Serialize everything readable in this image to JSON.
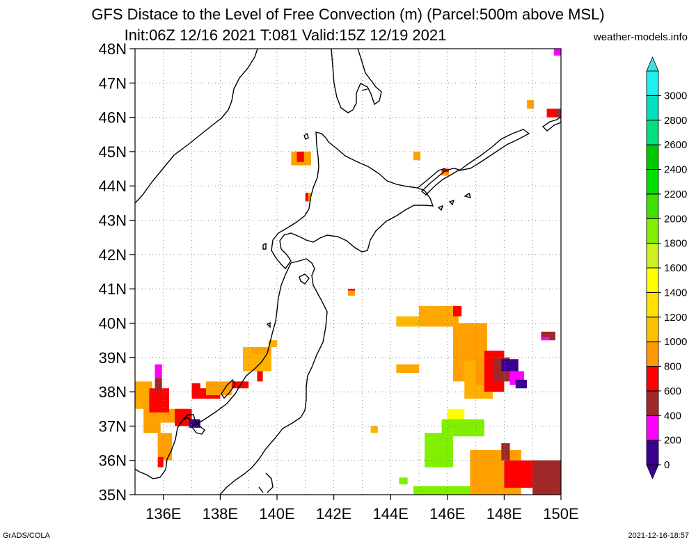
{
  "title_line1": "GFS Distace to the Level of Free Convection (m) (Parcel:500m above MSL)",
  "title_line2": "Init:06Z 12/16 2021 T:081 Valid:15Z 12/19 2021",
  "credit": "weather-models.info",
  "footer_left": "GrADS/COLA",
  "footer_right": "2021-12-16-18:57",
  "map": {
    "lon_range": [
      135,
      150
    ],
    "lat_range": [
      35,
      48
    ],
    "lon_ticks": [
      {
        "v": 136,
        "label": "136E"
      },
      {
        "v": 138,
        "label": "138E"
      },
      {
        "v": 140,
        "label": "140E"
      },
      {
        "v": 142,
        "label": "142E"
      },
      {
        "v": 144,
        "label": "144E"
      },
      {
        "v": 146,
        "label": "146E"
      },
      {
        "v": 148,
        "label": "148E"
      },
      {
        "v": 150,
        "label": "150E"
      }
    ],
    "lat_ticks": [
      {
        "v": 35,
        "label": "35N"
      },
      {
        "v": 36,
        "label": "36N"
      },
      {
        "v": 37,
        "label": "37N"
      },
      {
        "v": 38,
        "label": "38N"
      },
      {
        "v": 39,
        "label": "39N"
      },
      {
        "v": 40,
        "label": "40N"
      },
      {
        "v": 41,
        "label": "41N"
      },
      {
        "v": 42,
        "label": "42N"
      },
      {
        "v": 43,
        "label": "43N"
      },
      {
        "v": 44,
        "label": "44N"
      },
      {
        "v": 45,
        "label": "45N"
      },
      {
        "v": 46,
        "label": "46N"
      },
      {
        "v": 47,
        "label": "47N"
      },
      {
        "v": 48,
        "label": "48N"
      }
    ],
    "grid": "dotted"
  },
  "colorbar": {
    "levels": [
      "0",
      "200",
      "400",
      "600",
      "800",
      "1000",
      "1200",
      "1400",
      "1600",
      "1800",
      "2000",
      "2200",
      "2400",
      "2600",
      "2800",
      "3000"
    ],
    "colors": [
      "#3c0090",
      "#ff00ff",
      "#a02828",
      "#ff0000",
      "#ff9900",
      "#ffc000",
      "#ffe000",
      "#ffff00",
      "#cdf01e",
      "#80f000",
      "#40e000",
      "#00e000",
      "#00c800",
      "#00e080",
      "#00e0c0",
      "#20f0f0"
    ],
    "under_color": "#3c0090",
    "over_color": "#40e0e0"
  },
  "cape_field": [
    {
      "lon0": 146.2,
      "lon1": 147.4,
      "lat0": 38.3,
      "lat1": 40.0,
      "color": "#ffa000"
    },
    {
      "lon0": 146.6,
      "lon1": 147.6,
      "lat0": 37.8,
      "lat1": 38.9,
      "color": "#ffb000"
    },
    {
      "lon0": 147.0,
      "lon1": 147.6,
      "lat0": 38.2,
      "lat1": 39.0,
      "color": "#ff9900"
    },
    {
      "lon0": 145.0,
      "lon1": 146.4,
      "lat0": 39.9,
      "lat1": 40.5,
      "color": "#ffa800"
    },
    {
      "lon0": 144.2,
      "lon1": 145.0,
      "lat0": 39.9,
      "lat1": 40.2,
      "color": "#ffb800"
    },
    {
      "lon0": 146.2,
      "lon1": 146.5,
      "lat0": 40.2,
      "lat1": 40.5,
      "color": "#ff0000"
    },
    {
      "lon0": 144.2,
      "lon1": 145.0,
      "lat0": 38.55,
      "lat1": 38.8,
      "color": "#ffa800"
    },
    {
      "lon0": 147.3,
      "lon1": 148.0,
      "lat0": 38.0,
      "lat1": 39.2,
      "color": "#ff0000"
    },
    {
      "lon0": 147.6,
      "lon1": 148.2,
      "lat0": 38.3,
      "lat1": 39.0,
      "color": "#a02828"
    },
    {
      "lon0": 147.9,
      "lon1": 148.5,
      "lat0": 38.6,
      "lat1": 38.95,
      "color": "#3c0090"
    },
    {
      "lon0": 148.2,
      "lon1": 148.7,
      "lat0": 38.2,
      "lat1": 38.6,
      "color": "#ff00ff"
    },
    {
      "lon0": 148.4,
      "lon1": 148.8,
      "lat0": 38.1,
      "lat1": 38.35,
      "color": "#3c0090"
    },
    {
      "lon0": 146.0,
      "lon1": 146.6,
      "lat0": 37.0,
      "lat1": 37.5,
      "color": "#ffff00"
    },
    {
      "lon0": 145.8,
      "lon1": 147.3,
      "lat0": 36.7,
      "lat1": 37.2,
      "color": "#80f000"
    },
    {
      "lon0": 145.2,
      "lon1": 146.2,
      "lat0": 35.8,
      "lat1": 36.8,
      "color": "#80f000"
    },
    {
      "lon0": 144.3,
      "lon1": 144.6,
      "lat0": 35.3,
      "lat1": 35.5,
      "color": "#80f000"
    },
    {
      "lon0": 144.8,
      "lon1": 146.8,
      "lat0": 35.0,
      "lat1": 35.25,
      "color": "#80f000"
    },
    {
      "lon0": 146.8,
      "lon1": 148.6,
      "lat0": 35.0,
      "lat1": 36.3,
      "color": "#ffa000"
    },
    {
      "lon0": 148.0,
      "lon1": 150.0,
      "lat0": 35.2,
      "lat1": 36.0,
      "color": "#ff0000"
    },
    {
      "lon0": 149.0,
      "lon1": 150.0,
      "lat0": 35.0,
      "lat1": 36.0,
      "color": "#a02828"
    },
    {
      "lon0": 147.9,
      "lon1": 148.2,
      "lat0": 36.0,
      "lat1": 36.5,
      "color": "#a02828"
    },
    {
      "lon0": 149.3,
      "lon1": 149.8,
      "lat0": 39.5,
      "lat1": 39.75,
      "color": "#a02828"
    },
    {
      "lon0": 149.3,
      "lon1": 149.6,
      "lat0": 39.5,
      "lat1": 39.6,
      "color": "#ff00ff"
    },
    {
      "lon0": 135.0,
      "lon1": 135.6,
      "lat0": 37.5,
      "lat1": 38.3,
      "color": "#ffa800"
    },
    {
      "lon0": 135.3,
      "lon1": 135.9,
      "lat0": 36.8,
      "lat1": 37.8,
      "color": "#ffa000"
    },
    {
      "lon0": 135.6,
      "lon1": 136.9,
      "lat0": 37.1,
      "lat1": 37.5,
      "color": "#ffa000"
    },
    {
      "lon0": 135.5,
      "lon1": 136.2,
      "lat0": 37.4,
      "lat1": 38.1,
      "color": "#ff0000"
    },
    {
      "lon0": 136.4,
      "lon1": 137.0,
      "lat0": 37.0,
      "lat1": 37.5,
      "color": "#ff0000"
    },
    {
      "lon0": 136.9,
      "lon1": 137.3,
      "lat0": 36.95,
      "lat1": 37.2,
      "color": "#3c0090"
    },
    {
      "lon0": 135.7,
      "lon1": 135.95,
      "lat0": 38.4,
      "lat1": 38.8,
      "color": "#ff00ff"
    },
    {
      "lon0": 135.7,
      "lon1": 135.95,
      "lat0": 38.0,
      "lat1": 38.4,
      "color": "#a02828"
    },
    {
      "lon0": 135.8,
      "lon1": 136.3,
      "lat0": 36.0,
      "lat1": 36.8,
      "color": "#ffa000"
    },
    {
      "lon0": 135.8,
      "lon1": 136.0,
      "lat0": 35.8,
      "lat1": 36.1,
      "color": "#ff0000"
    },
    {
      "lon0": 137.0,
      "lon1": 138.0,
      "lat0": 37.8,
      "lat1": 38.1,
      "color": "#ff0000"
    },
    {
      "lon0": 137.5,
      "lon1": 138.4,
      "lat0": 37.9,
      "lat1": 38.3,
      "color": "#ffa000"
    },
    {
      "lon0": 137.0,
      "lon1": 137.3,
      "lat0": 38.0,
      "lat1": 38.25,
      "color": "#ff0000"
    },
    {
      "lon0": 138.4,
      "lon1": 139.0,
      "lat0": 38.1,
      "lat1": 38.3,
      "color": "#ff0000"
    },
    {
      "lon0": 138.8,
      "lon1": 139.8,
      "lat0": 38.6,
      "lat1": 39.3,
      "color": "#ffb000"
    },
    {
      "lon0": 139.1,
      "lon1": 139.8,
      "lat0": 39.1,
      "lat1": 39.3,
      "color": "#ffa000"
    },
    {
      "lon0": 139.7,
      "lon1": 140.0,
      "lat0": 39.3,
      "lat1": 39.5,
      "color": "#ffb000"
    },
    {
      "lon0": 139.3,
      "lon1": 139.5,
      "lat0": 38.3,
      "lat1": 38.6,
      "color": "#ff0000"
    },
    {
      "lon0": 140.5,
      "lon1": 141.2,
      "lat0": 44.6,
      "lat1": 45.0,
      "color": "#ffa000"
    },
    {
      "lon0": 140.7,
      "lon1": 140.95,
      "lat0": 44.7,
      "lat1": 45.0,
      "color": "#ff0000"
    },
    {
      "lon0": 141.0,
      "lon1": 141.2,
      "lat0": 43.55,
      "lat1": 43.8,
      "color": "#ffa000"
    },
    {
      "lon0": 141.0,
      "lon1": 141.1,
      "lat0": 43.55,
      "lat1": 43.8,
      "color": "#ff0000"
    },
    {
      "lon0": 142.5,
      "lon1": 142.75,
      "lat0": 40.8,
      "lat1": 41.0,
      "color": "#ffa000"
    },
    {
      "lon0": 142.5,
      "lon1": 142.75,
      "lat0": 40.95,
      "lat1": 41.0,
      "color": "#ff0000"
    },
    {
      "lon0": 144.8,
      "lon1": 145.05,
      "lat0": 44.75,
      "lat1": 45.0,
      "color": "#ffa000"
    },
    {
      "lon0": 145.8,
      "lon1": 146.05,
      "lat0": 44.3,
      "lat1": 44.5,
      "color": "#ffa000"
    },
    {
      "lon0": 145.8,
      "lon1": 146.05,
      "lat0": 44.4,
      "lat1": 44.5,
      "color": "#ff0000"
    },
    {
      "lon0": 143.3,
      "lon1": 143.55,
      "lat0": 36.8,
      "lat1": 37.0,
      "color": "#ffb000"
    },
    {
      "lon0": 148.8,
      "lon1": 149.05,
      "lat0": 46.25,
      "lat1": 46.5,
      "color": "#ffa000"
    },
    {
      "lon0": 149.5,
      "lon1": 150.0,
      "lat0": 46.0,
      "lat1": 46.25,
      "color": "#ff0000"
    },
    {
      "lon0": 149.8,
      "lon1": 150.0,
      "lat0": 46.0,
      "lat1": 46.25,
      "color": "#a02828"
    },
    {
      "lon0": 149.75,
      "lon1": 150.0,
      "lat0": 47.8,
      "lat1": 48.0,
      "color": "#ff00ff"
    }
  ]
}
